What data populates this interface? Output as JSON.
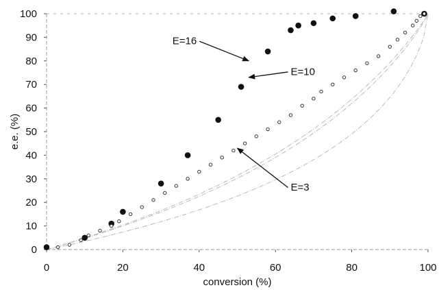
{
  "chart_data": {
    "type": "scatter",
    "xlabel": "conversion (%)",
    "ylabel": "e.e. (%)",
    "xlim": [
      0,
      100
    ],
    "ylim": [
      0,
      100
    ],
    "x_ticks": [
      0,
      20,
      40,
      60,
      80,
      100
    ],
    "y_ticks": [
      0,
      10,
      20,
      30,
      40,
      50,
      60,
      70,
      80,
      90,
      100
    ],
    "grid": false,
    "series": [
      {
        "marker": "filled-circle",
        "color": "#111111",
        "points": [
          {
            "x": 0,
            "y": 1
          },
          {
            "x": 10,
            "y": 5
          },
          {
            "x": 17,
            "y": 11
          },
          {
            "x": 20,
            "y": 16
          },
          {
            "x": 30,
            "y": 28
          },
          {
            "x": 37,
            "y": 40
          },
          {
            "x": 45,
            "y": 55
          },
          {
            "x": 51,
            "y": 69
          },
          {
            "x": 58,
            "y": 84
          },
          {
            "x": 64,
            "y": 93
          },
          {
            "x": 66,
            "y": 95
          },
          {
            "x": 70,
            "y": 96
          },
          {
            "x": 75,
            "y": 98
          },
          {
            "x": 81,
            "y": 99
          },
          {
            "x": 91,
            "y": 101
          },
          {
            "x": 99,
            "y": 100
          }
        ]
      },
      {
        "marker": "open-circle",
        "color": "#333333",
        "points": [
          {
            "x": 3,
            "y": 1
          },
          {
            "x": 6,
            "y": 2
          },
          {
            "x": 9,
            "y": 4
          },
          {
            "x": 11,
            "y": 6
          },
          {
            "x": 14,
            "y": 8
          },
          {
            "x": 17,
            "y": 10
          },
          {
            "x": 19,
            "y": 12
          },
          {
            "x": 22,
            "y": 15
          },
          {
            "x": 25,
            "y": 18
          },
          {
            "x": 28,
            "y": 21
          },
          {
            "x": 31,
            "y": 24
          },
          {
            "x": 34,
            "y": 27
          },
          {
            "x": 37,
            "y": 30
          },
          {
            "x": 40,
            "y": 33
          },
          {
            "x": 43,
            "y": 36
          },
          {
            "x": 46,
            "y": 39
          },
          {
            "x": 49,
            "y": 42
          },
          {
            "x": 52,
            "y": 45
          },
          {
            "x": 55,
            "y": 48
          },
          {
            "x": 58,
            "y": 51
          },
          {
            "x": 61,
            "y": 54
          },
          {
            "x": 64,
            "y": 57
          },
          {
            "x": 67,
            "y": 61
          },
          {
            "x": 70,
            "y": 64
          },
          {
            "x": 72,
            "y": 67
          },
          {
            "x": 75,
            "y": 70
          },
          {
            "x": 78,
            "y": 73
          },
          {
            "x": 81,
            "y": 76
          },
          {
            "x": 84,
            "y": 79
          },
          {
            "x": 87,
            "y": 82
          },
          {
            "x": 90,
            "y": 86
          },
          {
            "x": 92,
            "y": 89
          },
          {
            "x": 94,
            "y": 92
          },
          {
            "x": 96,
            "y": 95
          },
          {
            "x": 97,
            "y": 97
          },
          {
            "x": 98,
            "y": 99
          },
          {
            "x": 99,
            "y": 100
          }
        ]
      }
    ],
    "curves": [
      {
        "label": "E=16",
        "E": 16,
        "color": "#b8b8b8"
      },
      {
        "label": "E=10",
        "E": 10,
        "color": "#b8b8b8"
      },
      {
        "label": "E=3",
        "E": 3,
        "color": "#b8b8b8"
      }
    ],
    "annotations": [
      {
        "text": "E=16",
        "x": 33,
        "y": 87,
        "arrow_to": [
          53,
          80
        ]
      },
      {
        "text": "E=10",
        "x": 64,
        "y": 74,
        "arrow_to": [
          53,
          73
        ]
      },
      {
        "text": "E=3",
        "x": 64,
        "y": 25,
        "arrow_to": [
          50,
          43
        ]
      }
    ]
  }
}
